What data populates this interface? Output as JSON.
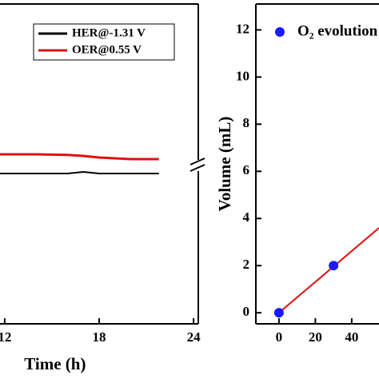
{
  "chart_data": [
    {
      "type": "line",
      "x_label": "Time (h)",
      "xlim": [
        11.7,
        24.3
      ],
      "xticks": [
        12,
        18,
        24
      ],
      "ylim": [
        0,
        1
      ],
      "x": [
        11.7,
        14,
        16,
        17,
        18,
        20,
        21.8
      ],
      "series": [
        {
          "name": "HER@-1.31 V",
          "color": "#000000",
          "values": [
            0.47,
            0.47,
            0.47,
            0.475,
            0.47,
            0.47,
            0.47
          ]
        },
        {
          "name": "OER@0.55 V",
          "color": "#e01010",
          "values": [
            0.53,
            0.53,
            0.528,
            0.525,
            0.52,
            0.515,
            0.515
          ]
        }
      ]
    },
    {
      "type": "scatter",
      "y_label": "Volume (mL)",
      "xlim": [
        -12.7,
        55
      ],
      "xticks": [
        0,
        20,
        40
      ],
      "ylim": [
        -0.47,
        13.1
      ],
      "yticks": [
        0,
        2,
        4,
        6,
        8,
        10,
        12
      ],
      "series": [
        {
          "name": "O₂ evolution",
          "color": "#1a1aff",
          "x": [
            0,
            30
          ],
          "values": [
            0,
            2
          ]
        }
      ],
      "fit": {
        "color": "#e01010",
        "x": [
          0,
          55
        ],
        "values": [
          0,
          3.6
        ]
      }
    }
  ]
}
